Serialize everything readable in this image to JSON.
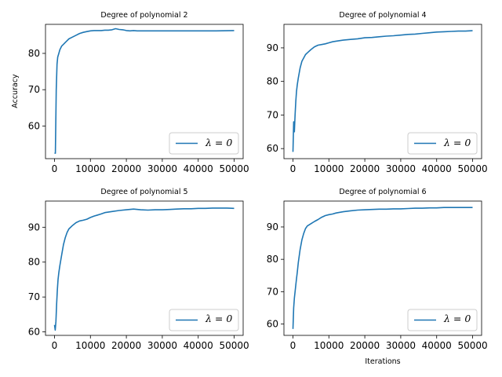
{
  "figure": {
    "background": "#ffffff",
    "line_color": "#1f77b4"
  },
  "chart_data": [
    {
      "type": "line",
      "title": "Degree of polynomial 2",
      "xlabel": "",
      "ylabel": "Accuracy",
      "xlim": [
        -2500,
        52500
      ],
      "ylim": [
        51,
        88
      ],
      "xticks": [
        0,
        10000,
        20000,
        30000,
        40000,
        50000
      ],
      "yticks": [
        60,
        70,
        80
      ],
      "legend": {
        "position": "lower right",
        "label": "λ = 0"
      },
      "series": [
        {
          "name": "λ = 0",
          "x": [
            0,
            250,
            500,
            700,
            900,
            1200,
            1500,
            2000,
            2500,
            3000,
            3500,
            4000,
            5000,
            6000,
            7000,
            8000,
            9000,
            10000,
            11000,
            12000,
            13000,
            14000,
            15000,
            16000,
            17000,
            18000,
            19000,
            20000,
            21000,
            22000,
            23000,
            24000,
            26000,
            30000,
            35000,
            40000,
            45000,
            50000
          ],
          "y": [
            52.5,
            52.5,
            70,
            77,
            79,
            80,
            81,
            82,
            82.5,
            83,
            83.5,
            84,
            84.5,
            85,
            85.5,
            85.8,
            86,
            86.2,
            86.3,
            86.3,
            86.3,
            86.4,
            86.4,
            86.5,
            86.8,
            86.6,
            86.5,
            86.3,
            86.2,
            86.3,
            86.2,
            86.2,
            86.2,
            86.2,
            86.2,
            86.2,
            86.2,
            86.3
          ]
        }
      ]
    },
    {
      "type": "line",
      "title": "Degree of polynomial 4",
      "xlabel": "",
      "ylabel": "",
      "xlim": [
        -2500,
        52500
      ],
      "ylim": [
        57,
        97
      ],
      "xticks": [
        0,
        10000,
        20000,
        30000,
        40000,
        50000
      ],
      "yticks": [
        60,
        70,
        80,
        90
      ],
      "legend": {
        "position": "lower right",
        "label": "λ = 0"
      },
      "series": [
        {
          "name": "λ = 0",
          "x": [
            0,
            200,
            400,
            600,
            800,
            1000,
            1200,
            1500,
            2000,
            2500,
            3000,
            3500,
            4000,
            5000,
            6000,
            7000,
            8000,
            9000,
            10000,
            11000,
            12000,
            14000,
            16000,
            18000,
            20000,
            22000,
            24000,
            26000,
            28000,
            30000,
            32000,
            34000,
            36000,
            38000,
            40000,
            42000,
            44000,
            46000,
            48000,
            50000
          ],
          "y": [
            59,
            68,
            65,
            70,
            74,
            77,
            79,
            81,
            84,
            86,
            87,
            88,
            88.5,
            89.5,
            90.3,
            90.8,
            91,
            91.2,
            91.5,
            91.8,
            92,
            92.3,
            92.5,
            92.7,
            93,
            93.1,
            93.3,
            93.5,
            93.6,
            93.8,
            94,
            94.1,
            94.3,
            94.5,
            94.7,
            94.8,
            94.9,
            95,
            95,
            95.1
          ]
        }
      ]
    },
    {
      "type": "line",
      "title": "Degree of polynomial 5",
      "xlabel": "",
      "ylabel": "",
      "xlim": [
        -2500,
        52500
      ],
      "ylim": [
        59,
        97.5
      ],
      "xticks": [
        0,
        10000,
        20000,
        30000,
        40000,
        50000
      ],
      "yticks": [
        60,
        70,
        80,
        90
      ],
      "legend": {
        "position": "lower right",
        "label": "λ = 0"
      },
      "series": [
        {
          "name": "λ = 0",
          "x": [
            0,
            200,
            400,
            600,
            800,
            1000,
            1200,
            1500,
            2000,
            2500,
            3000,
            3500,
            4000,
            5000,
            6000,
            7000,
            8000,
            9000,
            10000,
            11000,
            12000,
            13000,
            14000,
            16000,
            18000,
            20000,
            22000,
            24000,
            26000,
            28000,
            30000,
            32000,
            34000,
            36000,
            38000,
            40000,
            42000,
            44000,
            46000,
            48000,
            50000
          ],
          "y": [
            62,
            60.5,
            63,
            68,
            72,
            75,
            77,
            79,
            82,
            85,
            87,
            88.5,
            89.5,
            90.5,
            91.3,
            91.8,
            92,
            92.3,
            92.8,
            93.2,
            93.5,
            93.8,
            94.2,
            94.5,
            94.8,
            95,
            95.2,
            95,
            94.9,
            95,
            95,
            95.1,
            95.2,
            95.3,
            95.3,
            95.4,
            95.4,
            95.5,
            95.5,
            95.5,
            95.4
          ]
        }
      ]
    },
    {
      "type": "line",
      "title": "Degree of polynomial 6",
      "xlabel": "Iterations",
      "ylabel": "",
      "xlim": [
        -2500,
        52500
      ],
      "ylim": [
        56.5,
        98
      ],
      "xticks": [
        0,
        10000,
        20000,
        30000,
        40000,
        50000
      ],
      "yticks": [
        60,
        70,
        80,
        90
      ],
      "legend": {
        "position": "lower right",
        "label": "λ = 0"
      },
      "series": [
        {
          "name": "λ = 0",
          "x": [
            0,
            200,
            400,
            600,
            800,
            1000,
            1200,
            1500,
            2000,
            2500,
            3000,
            3500,
            4000,
            5000,
            6000,
            7000,
            8000,
            9000,
            10000,
            11000,
            12000,
            14000,
            16000,
            18000,
            20000,
            22000,
            24000,
            26000,
            28000,
            30000,
            32000,
            34000,
            36000,
            38000,
            40000,
            42000,
            44000,
            46000,
            48000,
            50000
          ],
          "y": [
            58.5,
            65,
            68,
            70,
            72,
            74,
            76,
            79,
            83,
            86,
            88,
            89.5,
            90.3,
            91,
            91.7,
            92.3,
            93,
            93.5,
            93.8,
            94,
            94.3,
            94.7,
            95,
            95.2,
            95.3,
            95.4,
            95.5,
            95.5,
            95.6,
            95.6,
            95.7,
            95.8,
            95.8,
            95.9,
            95.9,
            96,
            96,
            96,
            96,
            96
          ]
        }
      ]
    }
  ]
}
